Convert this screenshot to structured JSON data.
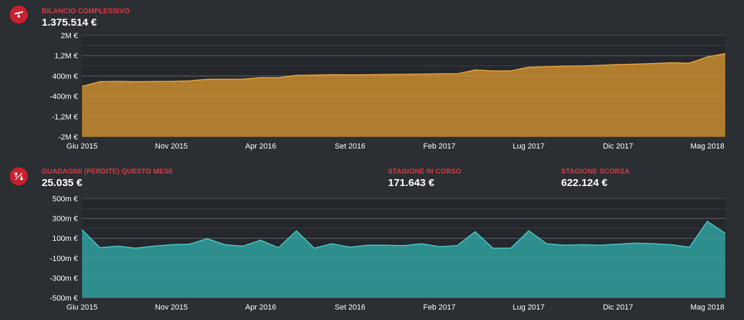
{
  "balance": {
    "label": "BILANCIO COMPLESSIVO",
    "value": "1.375.514 €"
  },
  "income": {
    "label": "GUADAGNI/ (PERDITE) QUESTO MESE",
    "value": "25.035 €",
    "current_season_label": "STAGIONE IN CORSO",
    "current_season_value": "171.643 €",
    "last_season_label": "STAGIONE SCORSA",
    "last_season_value": "622.124 €"
  },
  "colors": {
    "accent": "#e0393f",
    "badge": "#c8202e",
    "balance_fill": "#b07c2e",
    "balance_line": "#e3a445",
    "income_fill": "#2e8d8d",
    "income_line": "#49c7c7"
  },
  "icons": {
    "balance": "scale-icon",
    "income": "arrows-up-down-icon"
  },
  "chart_data": [
    {
      "type": "area",
      "y_tick_labels": [
        "2M €",
        "1,2M €",
        "400m €",
        "-400m €",
        "-1,2M €",
        "-2M €"
      ],
      "ylim": [
        -2000000,
        2000000
      ],
      "x_tick_labels": [
        "Giu 2015",
        "Nov 2015",
        "Apr 2016",
        "Set 2016",
        "Feb 2017",
        "Lug 2017",
        "Dic 2017",
        "Mag 2018"
      ],
      "x_months": [
        "Giu 2015",
        "Lug 2015",
        "Ago 2015",
        "Set 2015",
        "Ott 2015",
        "Nov 2015",
        "Dic 2015",
        "Gen 2016",
        "Feb 2016",
        "Mar 2016",
        "Apr 2016",
        "Mag 2016",
        "Giu 2016",
        "Lug 2016",
        "Ago 2016",
        "Set 2016",
        "Ott 2016",
        "Nov 2016",
        "Dic 2016",
        "Gen 2017",
        "Feb 2017",
        "Mar 2017",
        "Apr 2017",
        "Mag 2017",
        "Giu 2017",
        "Lug 2017",
        "Ago 2017",
        "Set 2017",
        "Ott 2017",
        "Nov 2017",
        "Dic 2017",
        "Gen 2018",
        "Feb 2018",
        "Mar 2018",
        "Apr 2018",
        "Mag 2018",
        "Giu 2018"
      ],
      "values": [
        -15000,
        175000,
        185000,
        175000,
        180000,
        185000,
        205000,
        265000,
        270000,
        275000,
        335000,
        330000,
        425000,
        435000,
        450000,
        445000,
        450000,
        460000,
        465000,
        475000,
        485000,
        485000,
        635000,
        600000,
        600000,
        745000,
        765000,
        785000,
        795000,
        820000,
        850000,
        865000,
        890000,
        920000,
        905000,
        1150000,
        1280000
      ],
      "grid": true
    },
    {
      "type": "area",
      "y_tick_labels": [
        "500m €",
        "300m €",
        "100m €",
        "-100m €",
        "-300m €",
        "-500m €"
      ],
      "ylim": [
        -500000,
        500000
      ],
      "x_tick_labels": [
        "Giu 2015",
        "Nov 2015",
        "Apr 2016",
        "Set 2016",
        "Feb 2017",
        "Lug 2017",
        "Dic 2017",
        "Mag 2018"
      ],
      "x_months": [
        "Giu 2015",
        "Lug 2015",
        "Ago 2015",
        "Set 2015",
        "Ott 2015",
        "Nov 2015",
        "Dic 2015",
        "Gen 2016",
        "Feb 2016",
        "Mar 2016",
        "Apr 2016",
        "Mag 2016",
        "Giu 2016",
        "Lug 2016",
        "Ago 2016",
        "Set 2016",
        "Ott 2016",
        "Nov 2016",
        "Dic 2016",
        "Gen 2017",
        "Feb 2017",
        "Mar 2017",
        "Apr 2017",
        "Mag 2017",
        "Giu 2017",
        "Lug 2017",
        "Ago 2017",
        "Set 2017",
        "Ott 2017",
        "Nov 2017",
        "Dic 2017",
        "Gen 2018",
        "Feb 2018",
        "Mar 2018",
        "Apr 2018",
        "Mag 2018",
        "Giu 2018"
      ],
      "values": [
        185000,
        5000,
        20000,
        0,
        20000,
        35000,
        40000,
        95000,
        35000,
        20000,
        80000,
        5000,
        175000,
        0,
        45000,
        10000,
        30000,
        30000,
        25000,
        45000,
        15000,
        25000,
        165000,
        0,
        0,
        175000,
        45000,
        30000,
        35000,
        30000,
        40000,
        50000,
        45000,
        35000,
        10000,
        270000,
        150000
      ],
      "grid": true
    }
  ]
}
